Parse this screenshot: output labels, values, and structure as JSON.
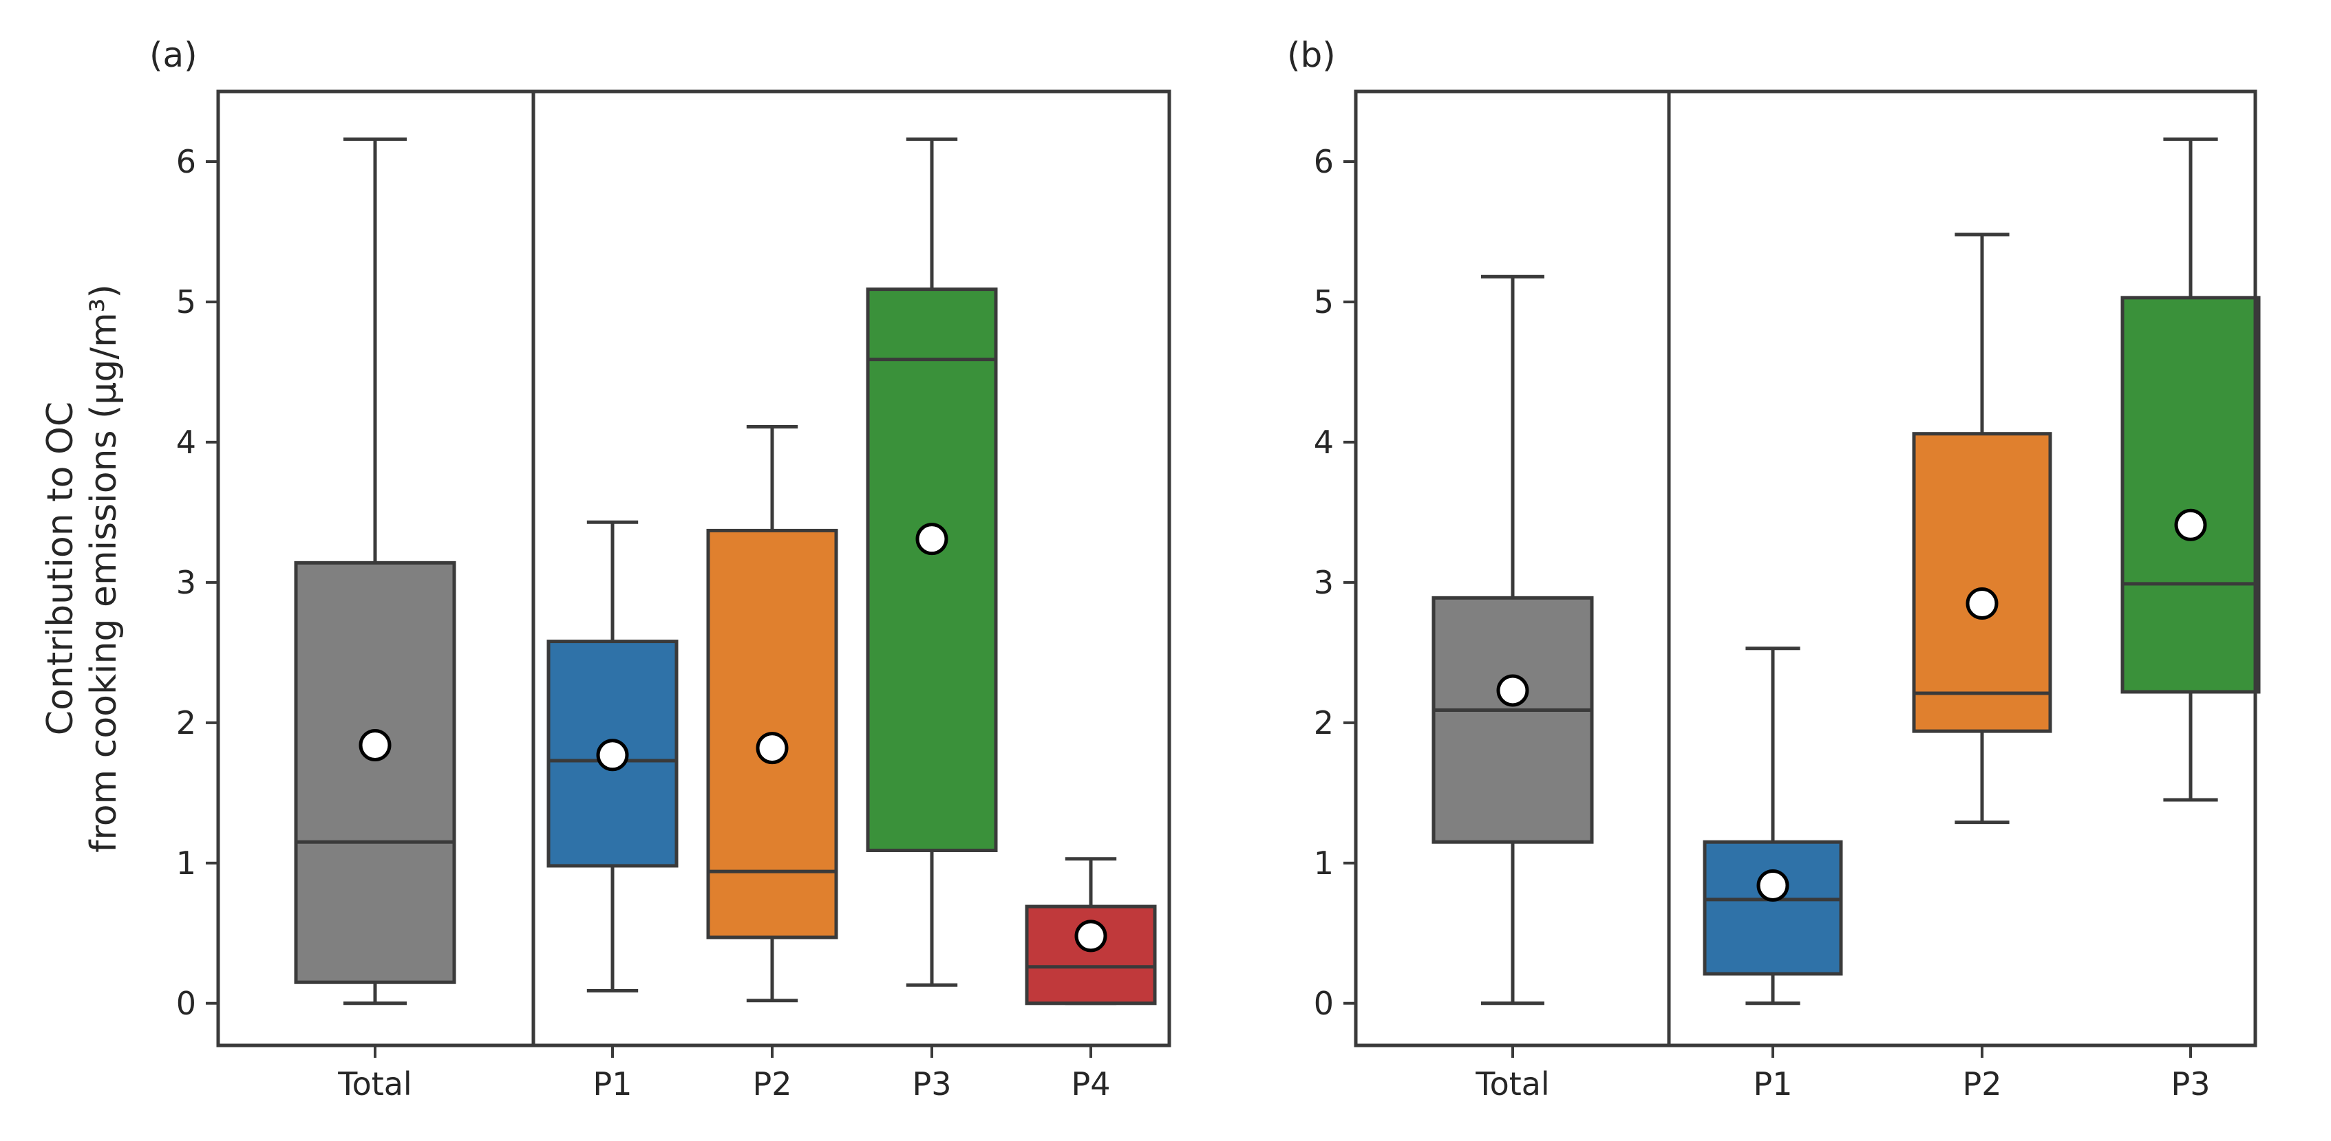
{
  "chart_data": [
    {
      "type": "box",
      "panel_label": "(a)",
      "ylabel_line1": "Contribution to OC",
      "ylabel_line2": "from cooking emissions (μg/m³)",
      "ylim": [
        -0.3,
        6.5
      ],
      "yticks": [
        "0",
        "1",
        "2",
        "3",
        "4",
        "5",
        "6"
      ],
      "categories": [
        {
          "label": "Total",
          "color": "#808080",
          "whislo": 0.0,
          "q1": 0.15,
          "median": 1.15,
          "q3": 3.14,
          "whishi": 6.16,
          "mean": 1.84
        },
        {
          "label": "P1",
          "color": "#2f72a8",
          "whislo": 0.09,
          "q1": 0.98,
          "median": 1.73,
          "q3": 2.58,
          "whishi": 3.43,
          "mean": 1.77
        },
        {
          "label": "P2",
          "color": "#e0802e",
          "whislo": 0.02,
          "q1": 0.47,
          "median": 0.94,
          "q3": 3.37,
          "whishi": 4.11,
          "mean": 1.82
        },
        {
          "label": "P3",
          "color": "#3a913a",
          "whislo": 0.13,
          "q1": 1.09,
          "median": 4.59,
          "q3": 5.09,
          "whishi": 6.16,
          "mean": 3.31
        },
        {
          "label": "P4",
          "color": "#c0393b",
          "whislo": 0.0,
          "q1": 0.0,
          "median": 0.26,
          "q3": 0.69,
          "whishi": 1.03,
          "mean": 0.48
        }
      ]
    },
    {
      "type": "box",
      "panel_label": "(b)",
      "ylim": [
        -0.3,
        6.5
      ],
      "yticks": [
        "0",
        "1",
        "2",
        "3",
        "4",
        "5",
        "6"
      ],
      "categories": [
        {
          "label": "Total",
          "color": "#808080",
          "whislo": 0.0,
          "q1": 1.15,
          "median": 2.09,
          "q3": 2.89,
          "whishi": 5.18,
          "mean": 2.23
        },
        {
          "label": "P1",
          "color": "#2f72a8",
          "whislo": 0.0,
          "q1": 0.21,
          "median": 0.74,
          "q3": 1.15,
          "whishi": 2.53,
          "mean": 0.84
        },
        {
          "label": "P2",
          "color": "#e0802e",
          "whislo": 1.29,
          "q1": 1.94,
          "median": 2.21,
          "q3": 4.06,
          "whishi": 5.48,
          "mean": 2.85
        },
        {
          "label": "P3",
          "color": "#3a913a",
          "whislo": 1.45,
          "q1": 2.22,
          "median": 2.99,
          "q3": 5.03,
          "whishi": 6.16,
          "mean": 3.41
        }
      ]
    }
  ]
}
